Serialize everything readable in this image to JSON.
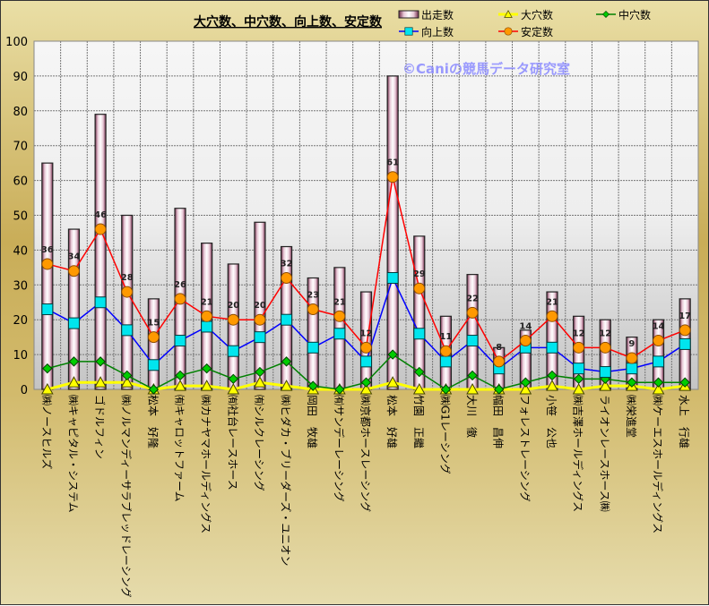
{
  "chart_data": {
    "type": "bar",
    "title": "大穴数、中穴数、向上数、安定数",
    "watermark": "©Caniの競馬データ研究室",
    "ylim": [
      0,
      100
    ],
    "yticks": [
      0,
      10,
      20,
      30,
      40,
      50,
      60,
      70,
      80,
      90,
      100
    ],
    "grid": true,
    "legend_placement": "top-right",
    "categories": [
      "㈱ノースヒルズ",
      "㈱キャピタル・システム",
      "ゴドルフィン",
      "㈱ノルマンディーサラブレッドレーシング",
      "松本　好隆",
      "㈲キャロットファーム",
      "㈱カナヤマホールディングス",
      "㈲社台レースホース",
      "㈲シルクレーシング",
      "㈱ヒダカ・ブリーダーズ・ユニオン",
      "岡田　牧雄",
      "㈲サンデーレーシング",
      "㈱京都ホースレーシング",
      "松本　好雄",
      "竹園　正繼",
      "㈱G1レーシング",
      "大川　徹",
      "幅田　昌伸",
      "フォレストレーシング",
      "小笹　公也",
      "㈱吉澤ホールディングス",
      "ライオンレースホース㈱",
      "㈱栄進堂",
      "㈱ケーエスホールディングス",
      "水上　行雄"
    ],
    "series": [
      {
        "name": "出走数",
        "kind": "bar",
        "color": "#7a2a4a",
        "values": [
          65,
          46,
          79,
          50,
          26,
          52,
          42,
          36,
          48,
          41,
          32,
          35,
          28,
          90,
          44,
          21,
          33,
          12,
          17,
          28,
          21,
          20,
          15,
          20,
          26
        ]
      },
      {
        "name": "大穴数",
        "kind": "line",
        "color": "#ffff00",
        "marker": "triangle",
        "marker_color": "#ffff00",
        "values": [
          0,
          2,
          2,
          2,
          0,
          1,
          1,
          0,
          2,
          1,
          0,
          0,
          0,
          2,
          0,
          0,
          0,
          0,
          0,
          1,
          0,
          1,
          1,
          0,
          1
        ]
      },
      {
        "name": "中穴数",
        "kind": "line",
        "color": "#008000",
        "marker": "diamond",
        "marker_color": "#00cc00",
        "values": [
          6,
          8,
          8,
          4,
          0,
          4,
          6,
          3,
          5,
          8,
          1,
          0,
          2,
          10,
          5,
          0,
          4,
          0,
          2,
          4,
          3,
          3,
          2,
          2,
          2
        ]
      },
      {
        "name": "向上数",
        "kind": "line",
        "color": "#0000ff",
        "marker": "square",
        "marker_color": "#00e5ee",
        "values": [
          23,
          19,
          25,
          17,
          7,
          14,
          18,
          11,
          15,
          20,
          12,
          16,
          8,
          32,
          16,
          8,
          14,
          6,
          12,
          12,
          6,
          5,
          6,
          8,
          13
        ]
      },
      {
        "name": "安定数",
        "kind": "line",
        "color": "#ff0000",
        "marker": "circle",
        "marker_color": "#ff9900",
        "data_labels": true,
        "values": [
          36,
          34,
          46,
          28,
          15,
          26,
          21,
          20,
          20,
          32,
          23,
          21,
          12,
          61,
          29,
          11,
          22,
          8,
          14,
          21,
          12,
          12,
          9,
          14,
          17
        ]
      }
    ]
  }
}
